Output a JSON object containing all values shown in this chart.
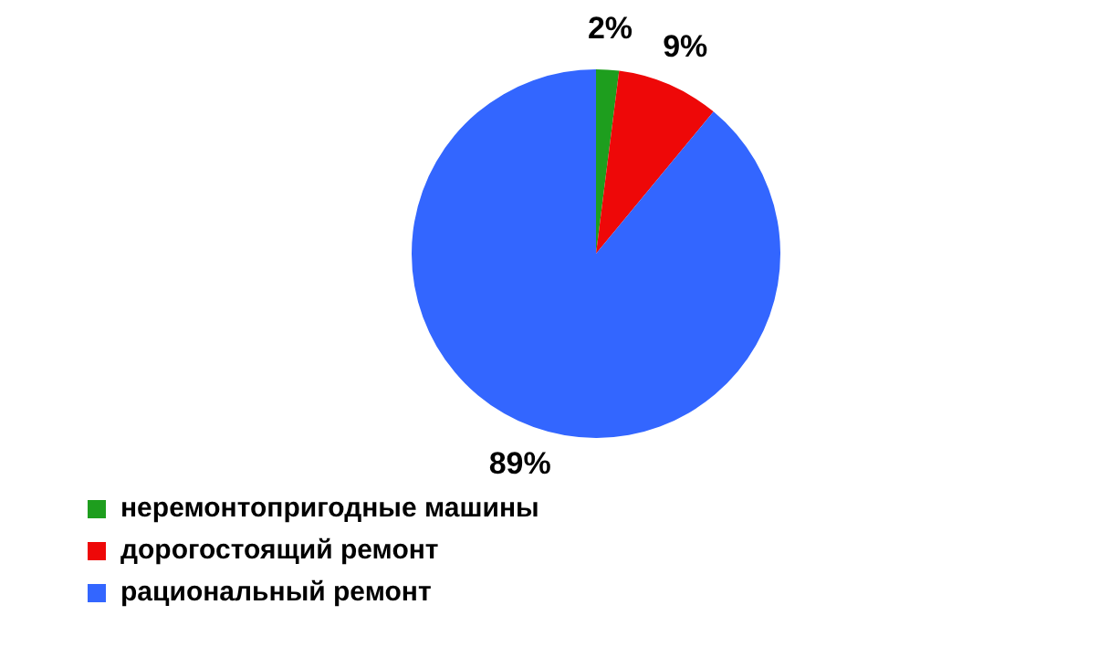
{
  "chart_data": {
    "type": "pie",
    "categories": [
      "неремонтопригодные машины",
      "дорогостоящий ремонт",
      "рациональный ремонт"
    ],
    "values": [
      2,
      9,
      89
    ],
    "colors": [
      "#1e9e1e",
      "#ee0808",
      "#3366ff"
    ],
    "value_labels": [
      "2%",
      "9%",
      "89%"
    ],
    "legend": "bottom left"
  }
}
